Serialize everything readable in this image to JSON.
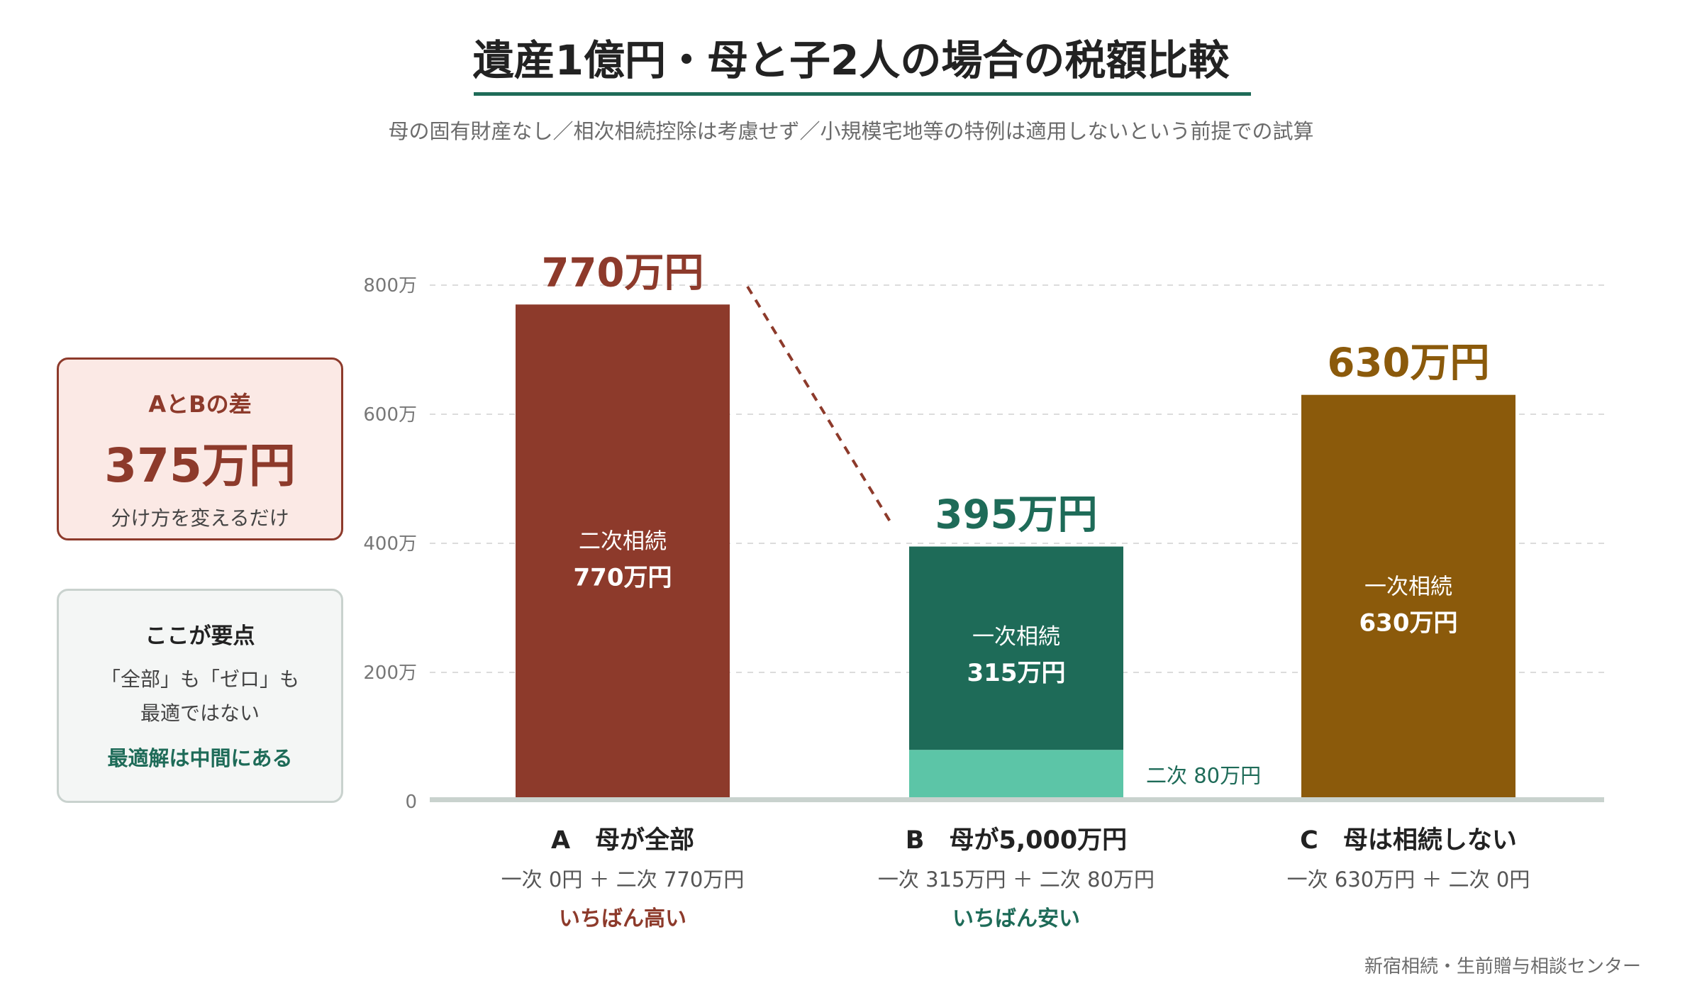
{
  "title": "遺産1億円・母と子2人の場合の税額比較",
  "subtitle": "母の固有財産なし／相次相続控除は考慮せず／小規模宅地等の特例は適用しないという前提での試算",
  "panels": {
    "difference": {
      "label": "AとBの差",
      "value": "375万円",
      "note": "分け方を変えるだけ"
    },
    "key_point": {
      "label": "ここが要点",
      "line1": "「全部」も「ゼロ」も",
      "line2": "最適ではない",
      "emphasis": "最適解は中間にある"
    }
  },
  "source": "新宿相続・生前贈与相談センター",
  "colors": {
    "red": "#8d3a2b",
    "green": "#1e6b58",
    "light_green": "#5cc5a7",
    "brown": "#8b5a0b",
    "grid": "#dcdcdc",
    "baseline": "#c9d2ce"
  },
  "chart_data": {
    "type": "bar",
    "stacked": true,
    "unit": "万円",
    "ylim": [
      0,
      800
    ],
    "yticks": [
      {
        "value": 0,
        "label": "0"
      },
      {
        "value": 200,
        "label": "200万"
      },
      {
        "value": 400,
        "label": "400万"
      },
      {
        "value": 600,
        "label": "600万"
      },
      {
        "value": 800,
        "label": "800万"
      }
    ],
    "grid": true,
    "categories": [
      {
        "name": "A　母が全部",
        "breakdown": "一次 0円 ＋ 二次 770万円",
        "tag": "いちばん高い",
        "tag_color": "#8d3a2b",
        "total": 770,
        "total_label": "770万円",
        "total_color": "#8d3a2b",
        "segments": [
          {
            "stage": "二次",
            "value": 770,
            "color": "#8d3a2b",
            "label_top": "二次相続",
            "label_bottom": "770万円"
          }
        ]
      },
      {
        "name": "B　母が5,000万円",
        "breakdown": "一次 315万円 ＋ 二次 80万円",
        "tag": "いちばん安い",
        "tag_color": "#1e6b58",
        "total": 395,
        "total_label": "395万円",
        "total_color": "#1e6b58",
        "segments": [
          {
            "stage": "二次",
            "value": 80,
            "color": "#5cc5a7",
            "side_label": "二次 80万円"
          },
          {
            "stage": "一次",
            "value": 315,
            "color": "#1e6b58",
            "label_top": "一次相続",
            "label_bottom": "315万円"
          }
        ]
      },
      {
        "name": "C　母は相続しない",
        "breakdown": "一次 630万円 ＋ 二次 0円",
        "tag": "",
        "tag_color": "#8b5a0b",
        "total": 630,
        "total_label": "630万円",
        "total_color": "#8b5a0b",
        "segments": [
          {
            "stage": "一次",
            "value": 630,
            "color": "#8b5a0b",
            "label_top": "一次相続",
            "label_bottom": "630万円"
          }
        ]
      }
    ]
  }
}
